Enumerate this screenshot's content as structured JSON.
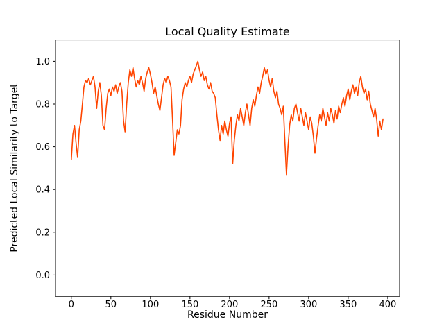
{
  "chart_data": {
    "type": "line",
    "title": "Local Quality Estimate",
    "xlabel": "Residue Number",
    "ylabel": "Predicted Local Similarity to Target",
    "line_color": "#ff4500",
    "line_width": 1.6,
    "background": "#ffffff",
    "grid": false,
    "legend": "none",
    "xlim": [
      -20,
      415
    ],
    "ylim": [
      -0.1,
      1.1
    ],
    "x_ticks": [
      0,
      50,
      100,
      150,
      200,
      250,
      300,
      350,
      400
    ],
    "y_ticks": [
      0.0,
      0.2,
      0.4,
      0.6,
      0.8,
      1.0
    ],
    "x_start": 0,
    "x_step": 2,
    "values": [
      0.54,
      0.66,
      0.7,
      0.62,
      0.55,
      0.68,
      0.72,
      0.8,
      0.88,
      0.91,
      0.9,
      0.92,
      0.89,
      0.91,
      0.93,
      0.88,
      0.78,
      0.86,
      0.9,
      0.84,
      0.7,
      0.68,
      0.78,
      0.85,
      0.87,
      0.84,
      0.88,
      0.86,
      0.89,
      0.85,
      0.88,
      0.9,
      0.86,
      0.72,
      0.67,
      0.8,
      0.9,
      0.96,
      0.93,
      0.97,
      0.92,
      0.88,
      0.91,
      0.89,
      0.93,
      0.9,
      0.86,
      0.92,
      0.95,
      0.97,
      0.94,
      0.9,
      0.85,
      0.88,
      0.84,
      0.8,
      0.77,
      0.83,
      0.89,
      0.92,
      0.9,
      0.93,
      0.91,
      0.88,
      0.72,
      0.56,
      0.62,
      0.68,
      0.66,
      0.7,
      0.82,
      0.87,
      0.9,
      0.88,
      0.91,
      0.93,
      0.9,
      0.94,
      0.96,
      0.98,
      1.0,
      0.96,
      0.93,
      0.95,
      0.91,
      0.93,
      0.89,
      0.87,
      0.9,
      0.86,
      0.85,
      0.83,
      0.75,
      0.68,
      0.63,
      0.7,
      0.66,
      0.72,
      0.68,
      0.65,
      0.71,
      0.74,
      0.52,
      0.63,
      0.7,
      0.75,
      0.72,
      0.78,
      0.74,
      0.7,
      0.76,
      0.8,
      0.75,
      0.7,
      0.78,
      0.82,
      0.79,
      0.84,
      0.88,
      0.85,
      0.9,
      0.93,
      0.97,
      0.94,
      0.96,
      0.91,
      0.88,
      0.92,
      0.86,
      0.83,
      0.86,
      0.8,
      0.78,
      0.75,
      0.79,
      0.62,
      0.47,
      0.6,
      0.7,
      0.75,
      0.72,
      0.78,
      0.8,
      0.76,
      0.72,
      0.78,
      0.74,
      0.7,
      0.76,
      0.72,
      0.68,
      0.74,
      0.71,
      0.65,
      0.57,
      0.64,
      0.7,
      0.75,
      0.72,
      0.78,
      0.74,
      0.7,
      0.76,
      0.72,
      0.78,
      0.75,
      0.71,
      0.77,
      0.73,
      0.79,
      0.76,
      0.8,
      0.83,
      0.79,
      0.84,
      0.87,
      0.82,
      0.86,
      0.89,
      0.85,
      0.88,
      0.84,
      0.9,
      0.93,
      0.88,
      0.85,
      0.87,
      0.82,
      0.86,
      0.8,
      0.77,
      0.74,
      0.78,
      0.73,
      0.65,
      0.72,
      0.68,
      0.73
    ]
  }
}
